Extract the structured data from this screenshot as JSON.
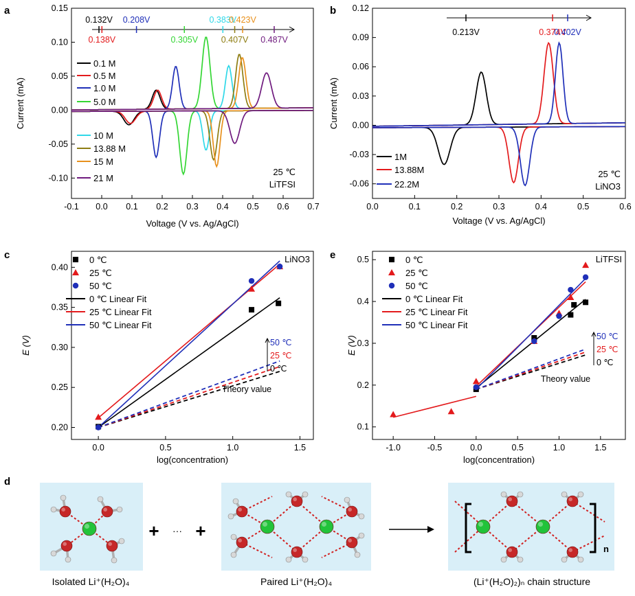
{
  "colors": {
    "black": "#000000",
    "red": "#e31a1c",
    "blue": "#1f2fb8",
    "green": "#33d633",
    "cyan": "#2fd8e8",
    "olive": "#8e7d12",
    "orange": "#e8901c",
    "purple": "#6f1a7e",
    "water_bg": "#d9eff8",
    "oxygen": "#c62828",
    "lithium": "#22c33a"
  },
  "panel_labels": {
    "a": "a",
    "b": "b",
    "c": "c",
    "d": "d",
    "e": "e"
  },
  "chart_data": [
    {
      "id": "a",
      "type": "line",
      "xlabel": "Voltage (V vs. Ag/AgCl)",
      "ylabel": "Current (mA)",
      "xlim": [
        -0.1,
        0.7
      ],
      "ylim": [
        -0.13,
        0.15
      ],
      "xticks": [
        "-0.1",
        "0.0",
        "0.1",
        "0.2",
        "0.3",
        "0.4",
        "0.5",
        "0.6",
        "0.7"
      ],
      "yticks": [
        "-0.10",
        "-0.05",
        "0.00",
        "0.05",
        "0.10",
        "0.15"
      ],
      "annotation_lines": [
        "25 ℃",
        "LiTFSI"
      ],
      "series": [
        {
          "name": "0.1 M",
          "color": "#000000",
          "ox_peak": [
            0.18,
            0.028
          ],
          "red_peak": [
            0.09,
            -0.02
          ],
          "ox_w": 0.013,
          "red_w": 0.017
        },
        {
          "name": "0.5 M",
          "color": "#e31a1c",
          "ox_peak": [
            0.185,
            0.028
          ],
          "red_peak": [
            0.095,
            -0.018
          ],
          "ox_w": 0.013,
          "red_w": 0.017
        },
        {
          "name": "1.0 M",
          "color": "#1f2fb8",
          "ox_peak": [
            0.245,
            0.063
          ],
          "red_peak": [
            0.18,
            -0.068
          ],
          "ox_w": 0.011,
          "red_w": 0.011
        },
        {
          "name": "5.0 M",
          "color": "#33d633",
          "ox_peak": [
            0.345,
            0.106
          ],
          "red_peak": [
            0.27,
            -0.093
          ],
          "ox_w": 0.013,
          "red_w": 0.012
        },
        {
          "name": "10 M",
          "color": "#2fd8e8",
          "ox_peak": [
            0.42,
            0.063
          ],
          "red_peak": [
            0.345,
            -0.058
          ],
          "ox_w": 0.011,
          "red_w": 0.011
        },
        {
          "name": "13.88 M",
          "color": "#8e7d12",
          "ox_peak": [
            0.455,
            0.08
          ],
          "red_peak": [
            0.37,
            -0.072
          ],
          "ox_w": 0.012,
          "red_w": 0.012
        },
        {
          "name": "15 M",
          "color": "#e8901c",
          "ox_peak": [
            0.465,
            0.075
          ],
          "red_peak": [
            0.38,
            -0.082
          ],
          "ox_w": 0.012,
          "red_w": 0.011
        },
        {
          "name": "21 M",
          "color": "#6f1a7e",
          "ox_peak": [
            0.545,
            0.052
          ],
          "red_peak": [
            0.44,
            -0.048
          ],
          "ox_w": 0.016,
          "red_w": 0.016
        }
      ],
      "arrow_labels_top": [
        {
          "text": "0.132V",
          "color": "#000000",
          "v": 0.132
        },
        {
          "text": "0.208V",
          "color": "#1f2fb8",
          "v": 0.208
        },
        {
          "text": "0.383V",
          "color": "#2fd8e8",
          "v": 0.383
        },
        {
          "text": "0.423V",
          "color": "#e8901c",
          "v": 0.423
        }
      ],
      "arrow_labels_bottom": [
        {
          "text": "0.138V",
          "color": "#e31a1c",
          "v": 0.138
        },
        {
          "text": "0.305V",
          "color": "#33d633",
          "v": 0.305
        },
        {
          "text": "0.407V",
          "color": "#8e7d12",
          "v": 0.407
        },
        {
          "text": "0.487V",
          "color": "#6f1a7e",
          "v": 0.487
        }
      ]
    },
    {
      "id": "b",
      "type": "line",
      "xlabel": "Voltage (V vs. Ag/AgCl)",
      "ylabel": "Current (mA)",
      "xlim": [
        0.0,
        0.6
      ],
      "ylim": [
        -0.075,
        0.12
      ],
      "xticks": [
        "0.0",
        "0.1",
        "0.2",
        "0.3",
        "0.4",
        "0.5",
        "0.6"
      ],
      "yticks": [
        "-0.06",
        "-0.03",
        "0.00",
        "0.03",
        "0.06",
        "0.09",
        "0.12"
      ],
      "annotation_lines": [
        "25 ℃",
        "LiNO3"
      ],
      "series": [
        {
          "name": "1M",
          "color": "#000000",
          "ox_peak": [
            0.258,
            0.054
          ],
          "red_peak": [
            0.17,
            -0.038
          ],
          "ox_w": 0.012,
          "red_w": 0.014
        },
        {
          "name": "13.88M",
          "color": "#e31a1c",
          "ox_peak": [
            0.418,
            0.083
          ],
          "red_peak": [
            0.335,
            -0.057
          ],
          "ox_w": 0.011,
          "red_w": 0.011
        },
        {
          "name": "22.2M",
          "color": "#1f2fb8",
          "ox_peak": [
            0.443,
            0.083
          ],
          "red_peak": [
            0.362,
            -0.06
          ],
          "ox_w": 0.009,
          "red_w": 0.011
        }
      ],
      "arrow_labels": [
        {
          "text": "0.213V",
          "color": "#000000",
          "v": 0.213
        },
        {
          "text": "0.374V",
          "color": "#e31a1c",
          "v": 0.374
        },
        {
          "text": "0.402V",
          "color": "#1f2fb8",
          "v": 0.402
        }
      ]
    },
    {
      "id": "c",
      "type": "scatter",
      "xlabel": "log(concentration)",
      "ylabel": "E (V)",
      "xlim": [
        -0.2,
        1.6
      ],
      "ylim": [
        0.185,
        0.42
      ],
      "xticks": [
        "0.0",
        "0.5",
        "1.0",
        "1.5"
      ],
      "yticks": [
        "0.20",
        "0.25",
        "0.30",
        "0.35",
        "0.40"
      ],
      "annotation": "LiNO3",
      "series": [
        {
          "name": "0 ℃",
          "marker": "square",
          "color": "#000000",
          "x": [
            0,
            1.14,
            1.34
          ],
          "y": [
            0.201,
            0.347,
            0.355
          ]
        },
        {
          "name": "25 ℃",
          "marker": "triangle",
          "color": "#e31a1c",
          "x": [
            0,
            1.14,
            1.35
          ],
          "y": [
            0.213,
            0.373,
            0.401
          ]
        },
        {
          "name": "50 ℃",
          "marker": "circle",
          "color": "#1f2fb8",
          "x": [
            0,
            1.14,
            1.35
          ],
          "y": [
            0.2,
            0.383,
            0.401
          ]
        }
      ],
      "fits": [
        {
          "name": "0 ℃ Linear Fit",
          "color": "#000000",
          "x": [
            0,
            1.35
          ],
          "y": [
            0.2,
            0.362
          ]
        },
        {
          "name": "25 ℃ Linear Fit",
          "color": "#e31a1c",
          "x": [
            0,
            1.35
          ],
          "y": [
            0.212,
            0.404
          ]
        },
        {
          "name": "50 ℃ Linear Fit",
          "color": "#1f2fb8",
          "x": [
            0,
            1.35
          ],
          "y": [
            0.2,
            0.408
          ]
        }
      ],
      "theory": [
        {
          "color": "#000000",
          "x": [
            0,
            1.35
          ],
          "y": [
            0.2,
            0.27
          ]
        },
        {
          "color": "#e31a1c",
          "x": [
            0,
            1.35
          ],
          "y": [
            0.2,
            0.276
          ]
        },
        {
          "color": "#1f2fb8",
          "x": [
            0,
            1.35
          ],
          "y": [
            0.2,
            0.283
          ]
        }
      ],
      "theory_labels": [
        {
          "text": "50 ℃",
          "color": "#1f2fb8"
        },
        {
          "text": "25 ℃",
          "color": "#e31a1c"
        },
        {
          "text": "0  ℃",
          "color": "#000000"
        }
      ],
      "theory_caption": "Theory value"
    },
    {
      "id": "e",
      "type": "scatter",
      "xlabel": "log(concentration)",
      "ylabel": "E (V)",
      "xlim": [
        -1.25,
        1.8
      ],
      "ylim": [
        0.07,
        0.52
      ],
      "xticks": [
        "-1.0",
        "-0.5",
        "0.0",
        "0.5",
        "1.0",
        "1.5"
      ],
      "yticks": [
        "0.1",
        "0.2",
        "0.3",
        "0.4",
        "0.5"
      ],
      "annotation": "LiTFSI",
      "series": [
        {
          "name": "0 ℃",
          "marker": "square",
          "color": "#000000",
          "x": [
            0,
            0.7,
            1.14,
            1.18,
            1.32
          ],
          "y": [
            0.19,
            0.313,
            0.368,
            0.392,
            0.398
          ]
        },
        {
          "name": "25 ℃",
          "marker": "triangle",
          "color": "#e31a1c",
          "x": [
            -1,
            -0.3,
            0,
            0.7,
            1.0,
            1.14,
            1.32
          ],
          "y": [
            0.13,
            0.137,
            0.209,
            0.305,
            0.372,
            0.41,
            0.487
          ]
        },
        {
          "name": "50 ℃",
          "marker": "circle",
          "color": "#1f2fb8",
          "x": [
            0,
            0.7,
            1.0,
            1.14,
            1.32
          ],
          "y": [
            0.195,
            0.305,
            0.365,
            0.428,
            0.458
          ]
        }
      ],
      "fits": [
        {
          "name": "0 ℃ Linear Fit",
          "color": "#000000",
          "x": [
            0,
            1.32
          ],
          "y": [
            0.193,
            0.405
          ]
        },
        {
          "name": "25 ℃ Linear Fit",
          "color": "#e31a1c",
          "x": [
            0,
            1.32
          ],
          "y": [
            0.197,
            0.447
          ]
        },
        {
          "name": "50 ℃ Linear Fit",
          "color": "#1f2fb8",
          "x": [
            0,
            1.32
          ],
          "y": [
            0.19,
            0.455
          ]
        }
      ],
      "extra_fit": {
        "color": "#e31a1c",
        "x": [
          -1,
          0
        ],
        "y": [
          0.123,
          0.173
        ]
      },
      "theory": [
        {
          "color": "#000000",
          "x": [
            0,
            1.32
          ],
          "y": [
            0.19,
            0.272
          ]
        },
        {
          "color": "#e31a1c",
          "x": [
            0,
            1.32
          ],
          "y": [
            0.19,
            0.279
          ]
        },
        {
          "color": "#1f2fb8",
          "x": [
            0,
            1.32
          ],
          "y": [
            0.19,
            0.286
          ]
        }
      ],
      "theory_labels": [
        {
          "text": "50 ℃",
          "color": "#1f2fb8"
        },
        {
          "text": "25 ℃",
          "color": "#e31a1c"
        },
        {
          "text": "0  ℃",
          "color": "#000000"
        }
      ],
      "theory_caption": "Theory value"
    }
  ],
  "panel_d": {
    "captions": {
      "isolated": "Isolated Li⁺(H₂O)₄",
      "paired": "Paired Li⁺(H₂O)₄",
      "chain": "(Li⁺(H₂O)₂)ₙ chain structure"
    },
    "plus": "+",
    "ellipsis": "···",
    "bracket_subscript": "n"
  }
}
